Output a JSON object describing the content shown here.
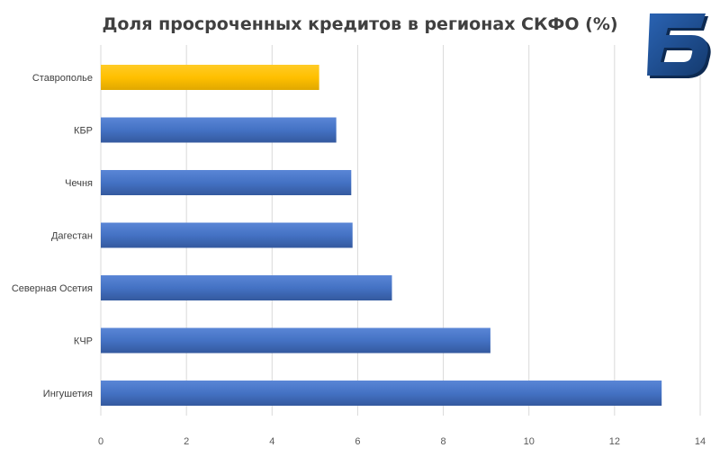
{
  "chart_data": {
    "type": "bar",
    "orientation": "horizontal",
    "title": "Доля просроченных кредитов в регионах СКФО (%)",
    "xlabel": "",
    "ylabel": "",
    "categories": [
      "Ставрополье",
      "КБР",
      "Чечня",
      "Дагестан",
      "Северная Осетия",
      "КЧР",
      "Ингушетия"
    ],
    "values": [
      5.1,
      5.5,
      5.85,
      5.88,
      6.8,
      9.1,
      13.1
    ],
    "highlight_category": "Ставрополье",
    "xlim": [
      0,
      14
    ],
    "xticks": [
      "0",
      "2",
      "4",
      "6",
      "8",
      "10",
      "12",
      "14"
    ],
    "grid": "vertical",
    "colors": {
      "bar": "#4472c4",
      "highlight": "#ffc000",
      "grid": "#d9d9d9",
      "text": "#404040"
    }
  },
  "logo": {
    "icon": "letter-b-logo-icon",
    "color": "#1f4e8c",
    "glyph": "Б"
  }
}
